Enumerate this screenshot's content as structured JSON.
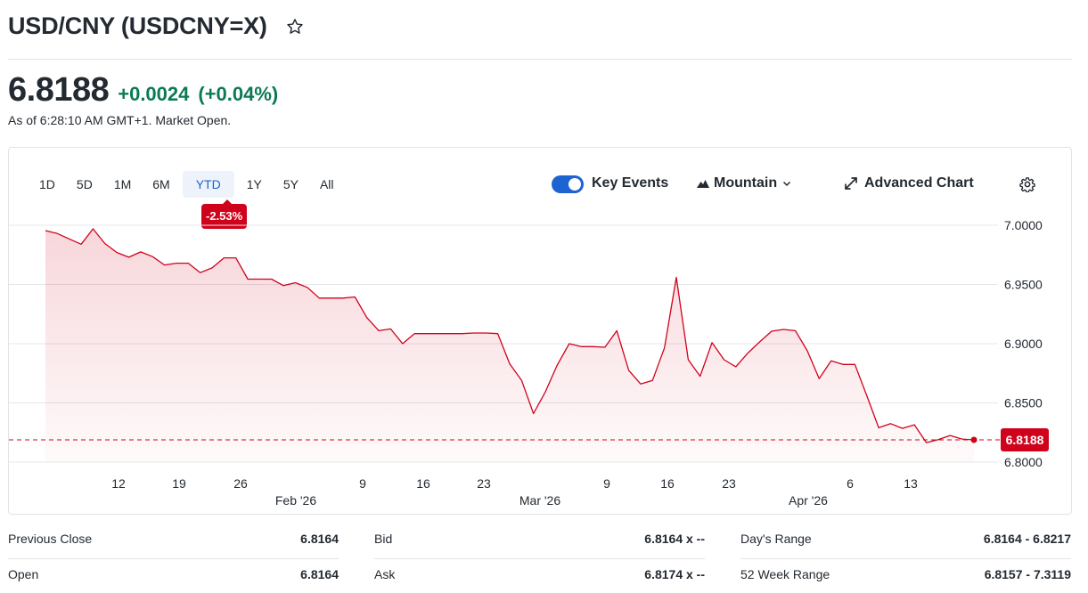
{
  "header": {
    "title": "USD/CNY (USDCNY=X)",
    "star_icon": "star-outline-icon"
  },
  "quote": {
    "price": "6.8188",
    "change": "+0.0024",
    "change_pct": "(+0.04%)",
    "as_of": "As of 6:28:10 AM GMT+1. Market Open.",
    "change_color": "#0b7a54"
  },
  "chart_controls": {
    "ranges": [
      "1D",
      "5D",
      "1M",
      "6M",
      "YTD",
      "1Y",
      "5Y",
      "All"
    ],
    "active_range": "YTD",
    "range_badge": "-2.53%",
    "key_events_label": "Key Events",
    "key_events_on": true,
    "chart_type_label": "Mountain",
    "advanced_chart_label": "Advanced Chart",
    "settings_icon": "gear-icon"
  },
  "chart_data": {
    "type": "area",
    "title": "",
    "xlabel": "",
    "ylabel": "",
    "ylim": [
      6.79,
      7.01
    ],
    "yticks": [
      "7.0000",
      "6.9500",
      "6.9000",
      "6.8500",
      "6.8000"
    ],
    "ytick_values": [
      7.0,
      6.95,
      6.9,
      6.85,
      6.8
    ],
    "xticks_day": [
      "12",
      "19",
      "26",
      "9",
      "16",
      "23",
      "9",
      "16",
      "23",
      "6",
      "13"
    ],
    "xticks_month": [
      "Feb '26",
      "Mar '26",
      "Apr '26"
    ],
    "current_value_label": "6.8188",
    "current_value": 6.8188,
    "line_color": "#d0021b",
    "grid": true,
    "series": [
      {
        "values": [
          6.9955,
          6.993,
          6.9885,
          6.984,
          6.997,
          6.9845,
          6.977,
          6.973,
          6.9775,
          6.9735,
          6.9665,
          6.968,
          6.968,
          6.96,
          6.964,
          6.9725,
          6.9725,
          6.9545,
          6.9545,
          6.9545,
          6.949,
          6.9515,
          6.9475,
          6.9385,
          6.9385,
          6.9385,
          6.9395,
          6.922,
          6.911,
          6.9125,
          6.9,
          6.9085,
          6.9085,
          6.9085,
          6.9085,
          6.9085,
          6.909,
          6.909,
          6.9085,
          6.883,
          6.869,
          6.841,
          6.8595,
          6.882,
          6.9,
          6.8975,
          6.8975,
          6.897,
          6.911,
          6.8775,
          6.866,
          6.869,
          6.8965,
          6.956,
          6.8865,
          6.8725,
          6.901,
          6.8865,
          6.8805,
          6.892,
          6.9015,
          6.9105,
          6.912,
          6.911,
          6.894,
          6.8705,
          6.8855,
          6.8825,
          6.8825,
          6.856,
          6.829,
          6.8325,
          6.8285,
          6.8315,
          6.8165,
          6.819,
          6.8225,
          6.8195,
          6.8188
        ]
      }
    ]
  },
  "stats": {
    "col1": [
      {
        "label": "Previous Close",
        "value": "6.8164"
      },
      {
        "label": "Open",
        "value": "6.8164"
      }
    ],
    "col2": [
      {
        "label": "Bid",
        "value": "6.8164 x --"
      },
      {
        "label": "Ask",
        "value": "6.8174 x --"
      }
    ],
    "col3": [
      {
        "label": "Day's Range",
        "value": "6.8164 - 6.8217"
      },
      {
        "label": "52 Week Range",
        "value": "6.8157 - 7.3119"
      }
    ]
  }
}
